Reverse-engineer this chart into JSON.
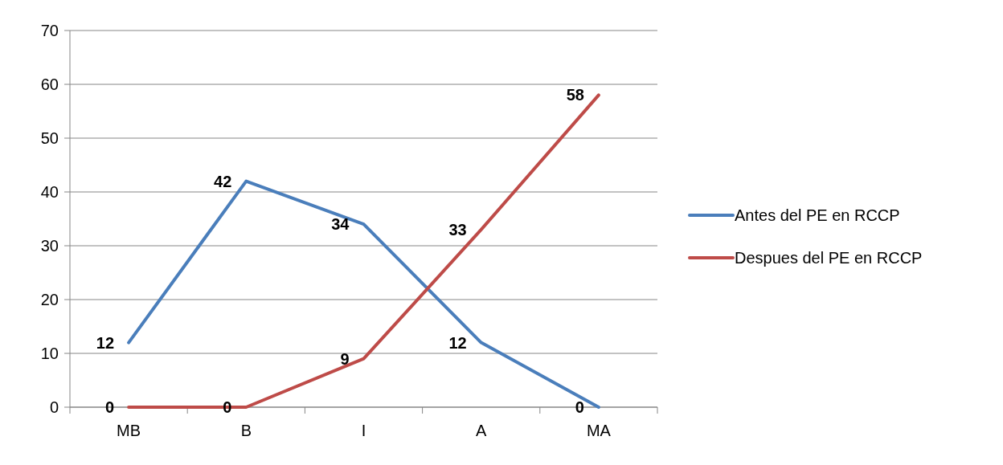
{
  "chart_data": {
    "type": "line",
    "categories": [
      "MB",
      "B",
      "I",
      "A",
      "MA"
    ],
    "series": [
      {
        "name": "Antes del PE en RCCP",
        "color": "#4a7ebb",
        "values": [
          12,
          42,
          34,
          12,
          0
        ]
      },
      {
        "name": "Despues del PE en RCCP",
        "color": "#be4b48",
        "values": [
          0,
          0,
          9,
          33,
          58
        ]
      }
    ],
    "ylim": [
      0,
      70
    ],
    "yticks": [
      0,
      10,
      20,
      30,
      40,
      50,
      60,
      70
    ],
    "grid": "y",
    "legend": "right",
    "data_labels": true,
    "marker": "none",
    "line_style": "solid"
  }
}
